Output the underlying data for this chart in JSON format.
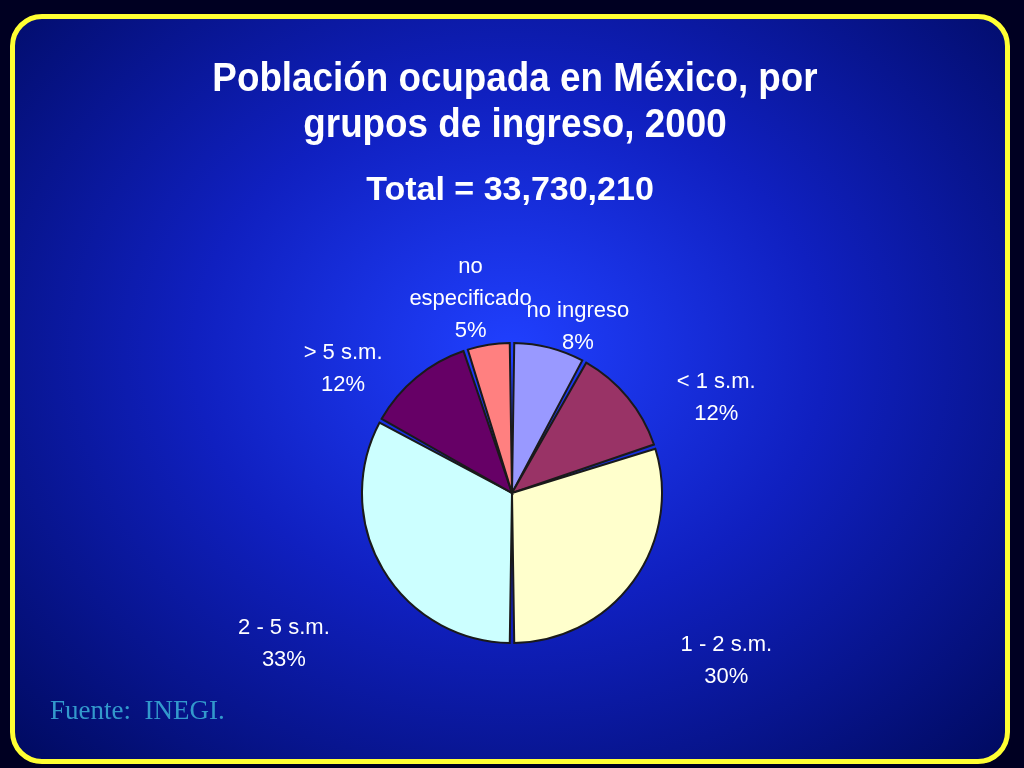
{
  "chart_data": {
    "type": "pie",
    "title": "Población ocupada en México, por grupos de ingreso, 2000",
    "subtitle": "Total = 33,730,210",
    "categories": [
      "no ingreso",
      "< 1 s.m.",
      "1 - 2 s.m.",
      "2 - 5 s.m.",
      "> 5 s.m.",
      "no especificado"
    ],
    "values": [
      8,
      12,
      30,
      33,
      12,
      5
    ],
    "value_labels": [
      "8%",
      "12%",
      "30%",
      "33%",
      "12%",
      "5%"
    ],
    "colors": [
      "#9999ff",
      "#993366",
      "#ffffcc",
      "#ccffff",
      "#660066",
      "#ff8080"
    ],
    "annotations": [
      "Fuente:  INEGI."
    ]
  }
}
